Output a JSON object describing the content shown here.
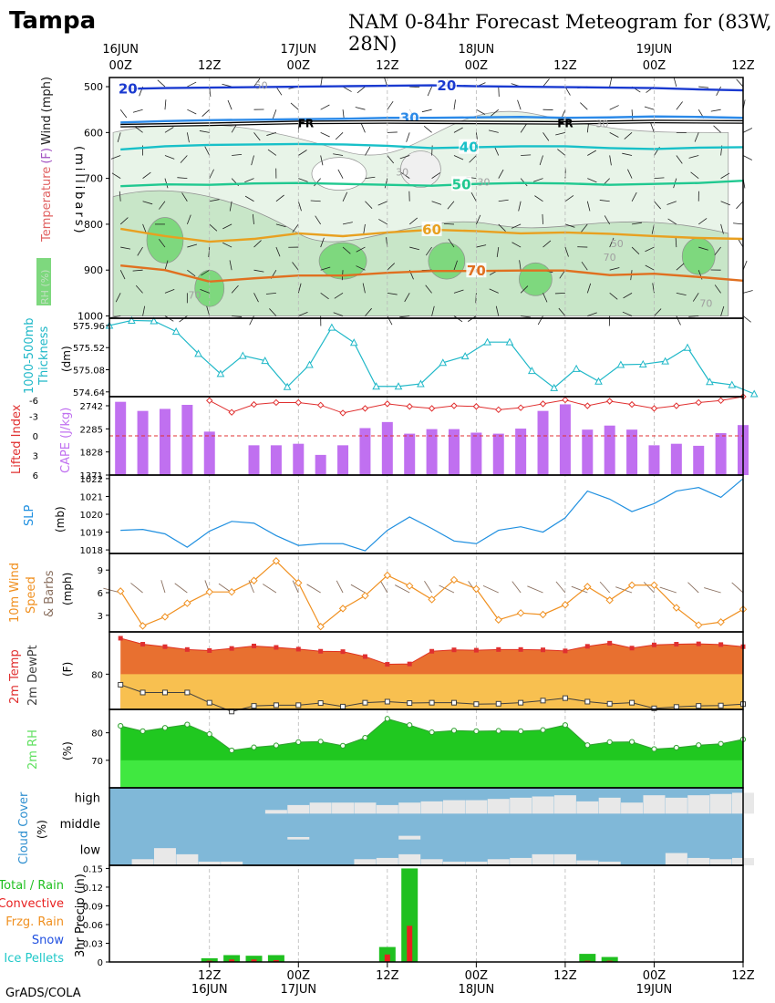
{
  "header": {
    "station": "Tampa",
    "title": "NAM 0-84hr Forecast Meteogram for (83W, 28N)",
    "credit": "GrADS/COLA"
  },
  "time_axis": {
    "top_labels": [
      {
        "t": 0,
        "lines": [
          "16JUN",
          "00Z"
        ]
      },
      {
        "t": 12,
        "lines": [
          "12Z"
        ]
      },
      {
        "t": 24,
        "lines": [
          "17JUN",
          "00Z"
        ]
      },
      {
        "t": 36,
        "lines": [
          "12Z"
        ]
      },
      {
        "t": 48,
        "lines": [
          "18JUN",
          "00Z"
        ]
      },
      {
        "t": 60,
        "lines": [
          "12Z"
        ]
      },
      {
        "t": 72,
        "lines": [
          "19JUN",
          "00Z"
        ]
      },
      {
        "t": 84,
        "lines": [
          "12Z"
        ]
      }
    ],
    "bottom_labels": [
      {
        "t": 12,
        "lines": [
          "12Z",
          "16JUN"
        ]
      },
      {
        "t": 24,
        "lines": [
          "00Z",
          "17JUN"
        ]
      },
      {
        "t": 36,
        "lines": [
          "12Z",
          ""
        ]
      },
      {
        "t": 48,
        "lines": [
          "00Z",
          "18JUN"
        ]
      },
      {
        "t": 60,
        "lines": [
          "12Z",
          ""
        ]
      },
      {
        "t": 72,
        "lines": [
          "00Z",
          "19JUN"
        ]
      },
      {
        "t": 84,
        "lines": [
          "12Z",
          ""
        ]
      }
    ],
    "range_hours": [
      -1.5,
      84
    ]
  },
  "colors": {
    "temp_label": "#e05050",
    "rh_fill_light": "#e8f4e8",
    "rh_fill_mid": "#c8e6c8",
    "rh_fill_dark": "#7ed87e",
    "thickness": "#20b8c8",
    "lifted": "#e03030",
    "cape": "#c070f0",
    "slp": "#2090e0",
    "wind10": "#f09020",
    "temp": "#e87030",
    "dewpt_fill": "#f8c050",
    "rh2m": "#20c820",
    "rh2m_light": "#40e840",
    "cloud_bg": "#80b8d8",
    "cloud": "#e8e8e8",
    "precip_total": "#20c020",
    "precip_conv": "#e82020"
  },
  "chart_data": [
    {
      "type": "heatmap",
      "panel": "upper_air",
      "ylabel_parts": [
        "Temperature",
        "(F)",
        "Wind",
        "(mph)"
      ],
      "ylabel_inner": "(millibars)",
      "rh_label": "RH (%)",
      "yticks": [
        500,
        600,
        700,
        800,
        900,
        1000
      ],
      "ylim": [
        1005,
        480
      ],
      "isotherms": [
        {
          "label": "20",
          "color": "#1a3ad0",
          "labels_at": [
            1,
            44
          ],
          "x": [
            0,
            6,
            12,
            18,
            24,
            30,
            36,
            42,
            48,
            54,
            60,
            66,
            72,
            78,
            84
          ],
          "p": [
            505,
            503,
            502,
            501,
            500,
            499,
            498,
            497,
            499,
            500,
            501,
            502,
            503,
            506,
            508
          ]
        },
        {
          "label": "30",
          "color": "#2c8ae8",
          "labels_at": [
            39
          ],
          "x": [
            0,
            6,
            12,
            18,
            24,
            30,
            36,
            42,
            48,
            54,
            60,
            66,
            72,
            78,
            84
          ],
          "p": [
            578,
            575,
            573,
            572,
            571,
            570,
            568,
            568,
            567,
            566,
            568,
            567,
            565,
            566,
            568
          ]
        },
        {
          "label": "40",
          "color": "#18c0c8",
          "labels_at": [
            47
          ],
          "x": [
            0,
            6,
            12,
            18,
            24,
            30,
            36,
            42,
            48,
            54,
            60,
            66,
            72,
            78,
            84
          ],
          "p": [
            637,
            630,
            627,
            626,
            625,
            626,
            629,
            634,
            632,
            630,
            630,
            634,
            636,
            633,
            632
          ]
        },
        {
          "label": "50",
          "color": "#20c890",
          "labels_at": [
            46
          ],
          "x": [
            0,
            6,
            12,
            18,
            24,
            30,
            36,
            42,
            48,
            54,
            60,
            66,
            72,
            78,
            84
          ],
          "p": [
            717,
            713,
            714,
            711,
            710,
            712,
            714,
            716,
            712,
            710,
            711,
            714,
            712,
            710,
            705
          ]
        },
        {
          "label": "60",
          "color": "#e8a020",
          "labels_at": [
            42
          ],
          "x": [
            0,
            6,
            12,
            18,
            24,
            30,
            36,
            42,
            48,
            54,
            60,
            66,
            72,
            78,
            84
          ],
          "p": [
            810,
            826,
            838,
            832,
            820,
            826,
            818,
            812,
            815,
            820,
            818,
            821,
            826,
            830,
            832
          ]
        },
        {
          "label": "70",
          "color": "#e07020",
          "labels_at": [
            48
          ],
          "x": [
            0,
            6,
            12,
            18,
            24,
            30,
            36,
            42,
            48,
            54,
            60,
            66,
            72,
            78,
            84
          ],
          "p": [
            890,
            900,
            925,
            918,
            912,
            912,
            906,
            902,
            902,
            901,
            901,
            911,
            908,
            915,
            923
          ]
        }
      ],
      "freezing_level": {
        "label": "FR",
        "labels_at": [
          25,
          60
        ],
        "x": [
          0,
          12,
          24,
          36,
          48,
          60,
          72,
          84
        ],
        "p": [
          585,
          582,
          578,
          577,
          578,
          579,
          576,
          577
        ]
      },
      "rh_labels": [
        {
          "text": "50",
          "x": 19,
          "p": 505
        },
        {
          "text": "30",
          "x": 38,
          "p": 694
        },
        {
          "text": "30",
          "x": 49,
          "p": 716
        },
        {
          "text": "50",
          "x": 67,
          "p": 850
        },
        {
          "text": "70",
          "x": 66,
          "p": 880
        },
        {
          "text": "70",
          "x": 79,
          "p": 980
        },
        {
          "text": "30",
          "x": 65,
          "p": 588
        },
        {
          "text": "70",
          "x": 10,
          "p": 962
        }
      ]
    },
    {
      "type": "line",
      "panel": "thickness",
      "ylabel": "1000-500mb Thickness (dm)",
      "yticks": [
        575.96,
        575.52,
        575.08,
        574.64
      ],
      "ylim": [
        574.6,
        576.05
      ],
      "x": [
        -1.5,
        1.5,
        4.5,
        7.5,
        10.5,
        13.5,
        16.5,
        19.5,
        22.5,
        25.5,
        28.5,
        31.5,
        34.5,
        37.5,
        40.5,
        43.5,
        46.5,
        49.5,
        52.5,
        55.5,
        58.5,
        61.5,
        64.5,
        67.5,
        70.5,
        73.5,
        76.5,
        79.5,
        82.5,
        85.5
      ],
      "values": [
        575.96,
        576.06,
        576.05,
        575.84,
        575.4,
        575.0,
        575.36,
        575.26,
        574.74,
        575.18,
        575.92,
        575.62,
        574.75,
        574.75,
        574.8,
        575.22,
        575.35,
        575.63,
        575.63,
        575.06,
        574.72,
        575.1,
        574.85,
        575.18,
        575.19,
        575.25,
        575.52,
        574.84,
        574.78,
        574.6
      ]
    },
    {
      "type": "bar",
      "panel": "cape_li",
      "ylabel_left": "Lifted Index",
      "ylabel_right": "CAPE (J/kg)",
      "li_ticks": [
        "-6",
        "-3",
        "0",
        "3",
        "6"
      ],
      "cape_ticks": [
        2742,
        2285,
        1828,
        1371
      ],
      "cape_ylim": [
        1371,
        2742
      ],
      "li_ylim": [
        6,
        -6
      ],
      "bar_x": [
        0,
        3,
        6,
        9,
        12,
        15,
        18,
        21,
        24,
        27,
        30,
        33,
        36,
        39,
        42,
        45,
        48,
        51,
        54,
        57,
        60,
        63,
        66,
        69,
        72,
        75,
        78,
        81,
        84
      ],
      "cape": [
        2820,
        2640,
        2680,
        2760,
        2230,
        1380,
        1960,
        1960,
        1990,
        1770,
        1960,
        2300,
        2420,
        2190,
        2280,
        2280,
        2210,
        2190,
        2290,
        2640,
        2770,
        2270,
        2350,
        2270,
        1960,
        1990,
        1950,
        2200,
        2360
      ],
      "li_x": [
        12,
        15,
        18,
        21,
        24,
        27,
        30,
        33,
        36,
        39,
        42,
        45,
        48,
        51,
        54,
        57,
        60,
        63,
        66,
        69,
        72,
        75,
        78,
        81,
        84
      ],
      "li": [
        -5.4,
        -3.6,
        -4.8,
        -5.1,
        -5.1,
        -4.7,
        -3.5,
        -4.2,
        -4.9,
        -4.5,
        -4.2,
        -4.6,
        -4.5,
        -4.0,
        -4.3,
        -4.9,
        -5.5,
        -4.6,
        -5.3,
        -4.8,
        -4.2,
        -4.6,
        -5.1,
        -5.4,
        -6.0
      ],
      "li_zero_line": 0
    },
    {
      "type": "line",
      "panel": "slp",
      "ylabel": "SLP (mb)",
      "yticks": [
        1018,
        1019,
        1020,
        1021,
        1022
      ],
      "ylim": [
        1017.8,
        1022.2
      ],
      "x": [
        0,
        3,
        6,
        9,
        12,
        15,
        18,
        21,
        24,
        27,
        30,
        33,
        36,
        39,
        42,
        45,
        48,
        51,
        54,
        57,
        60,
        63,
        66,
        69,
        72,
        75,
        78,
        81,
        84
      ],
      "values": [
        1019.1,
        1019.15,
        1018.9,
        1018.15,
        1019.05,
        1019.6,
        1019.5,
        1018.8,
        1018.25,
        1018.35,
        1018.35,
        1017.95,
        1019.1,
        1019.85,
        1019.2,
        1018.5,
        1018.35,
        1019.1,
        1019.3,
        1019.0,
        1019.8,
        1021.3,
        1020.85,
        1020.15,
        1020.6,
        1021.3,
        1021.5,
        1020.95,
        1022.0
      ]
    },
    {
      "type": "line",
      "panel": "wind10m",
      "ylabel": "10m Wind Speed & Barbs (mph)",
      "yticks": [
        3,
        6,
        9
      ],
      "ylim": [
        0.8,
        11.2
      ],
      "x": [
        0,
        3,
        6,
        9,
        12,
        15,
        18,
        21,
        24,
        27,
        30,
        33,
        36,
        39,
        42,
        45,
        48,
        51,
        54,
        57,
        60,
        63,
        66,
        69,
        72,
        75,
        78,
        81,
        84
      ],
      "values": [
        6.2,
        1.6,
        2.8,
        4.6,
        6.1,
        6.1,
        7.6,
        10.2,
        7.3,
        1.5,
        3.9,
        5.6,
        8.3,
        6.9,
        5.1,
        7.7,
        6.5,
        2.4,
        3.3,
        3.1,
        4.4,
        6.8,
        5.0,
        7.0,
        7.0,
        4.0,
        1.7,
        2.1,
        3.8
      ]
    },
    {
      "type": "area",
      "panel": "temp",
      "ylabel_parts": [
        "2m Temp",
        "2m DewPt",
        "(F)"
      ],
      "yticks": [
        80
      ],
      "ylim": [
        70,
        92
      ],
      "x": [
        0,
        3,
        6,
        9,
        12,
        15,
        18,
        21,
        24,
        27,
        30,
        33,
        36,
        39,
        42,
        45,
        48,
        51,
        54,
        57,
        60,
        63,
        66,
        69,
        72,
        75,
        78,
        81,
        84
      ],
      "series": [
        {
          "name": "2m Temp",
          "values": [
            90.2,
            88.5,
            87.8,
            87.0,
            86.7,
            87.3,
            88.0,
            87.6,
            87.1,
            86.5,
            86.4,
            85.0,
            82.8,
            82.9,
            86.5,
            86.9,
            86.8,
            87.0,
            87.0,
            86.9,
            86.6,
            87.9,
            88.8,
            87.4,
            88.3,
            88.5,
            88.6,
            88.4,
            87.8
          ]
        },
        {
          "name": "2m DewPt",
          "values": [
            77.0,
            74.8,
            74.8,
            74.8,
            71.9,
            69.4,
            71.0,
            71.2,
            71.2,
            71.8,
            70.8,
            71.9,
            72.2,
            71.8,
            71.9,
            71.9,
            71.5,
            71.6,
            71.9,
            72.5,
            73.2,
            72.2,
            71.6,
            71.9,
            70.3,
            70.7,
            71.0,
            71.1,
            71.5
          ]
        }
      ]
    },
    {
      "type": "area",
      "panel": "rh2m",
      "ylabel_parts": [
        "2m RH",
        "(%)"
      ],
      "yticks": [
        70,
        80
      ],
      "ylim": [
        60,
        88.5
      ],
      "x": [
        0,
        3,
        6,
        9,
        12,
        15,
        18,
        21,
        24,
        27,
        30,
        33,
        36,
        39,
        42,
        45,
        48,
        51,
        54,
        57,
        60,
        63,
        66,
        69,
        72,
        75,
        78,
        81,
        84
      ],
      "values": [
        82.5,
        80.6,
        81.8,
        83.0,
        79.5,
        73.6,
        74.7,
        75.4,
        76.6,
        76.8,
        75.3,
        78.2,
        85.1,
        82.8,
        80.2,
        80.8,
        80.6,
        80.7,
        80.6,
        81.0,
        82.8,
        75.5,
        76.6,
        76.7,
        74.1,
        74.6,
        75.5,
        76.0,
        77.6
      ]
    },
    {
      "type": "bar",
      "panel": "cloud",
      "ylabel_parts": [
        "Cloud Cover",
        "(%)"
      ],
      "level_labels": [
        "high",
        "middle",
        "low"
      ],
      "bar_x": [
        0,
        3,
        6,
        9,
        12,
        15,
        18,
        21,
        24,
        27,
        30,
        33,
        36,
        39,
        42,
        45,
        48,
        51,
        54,
        57,
        60,
        63,
        66,
        69,
        72,
        75,
        78,
        81,
        84
      ],
      "series": [
        {
          "name": "high",
          "values": [
            0,
            0,
            0,
            0,
            0,
            0,
            0,
            0.15,
            0.35,
            0.45,
            0.45,
            0.45,
            0.35,
            0.45,
            0.5,
            0.55,
            0.55,
            0.6,
            0.65,
            0.7,
            0.75,
            0.5,
            0.65,
            0.45,
            0.75,
            0.65,
            0.75,
            0.8,
            0.85
          ]
        },
        {
          "name": "middle",
          "values": [
            0,
            0,
            0,
            0,
            0,
            0,
            0,
            0,
            0.1,
            0,
            0,
            0,
            0,
            0.15,
            0,
            0,
            0,
            0,
            0,
            0,
            0,
            0,
            0,
            0,
            0,
            0,
            0,
            0,
            0
          ]
        },
        {
          "name": "low",
          "values": [
            0,
            0.25,
            0.7,
            0.45,
            0.15,
            0.15,
            0,
            0,
            0,
            0,
            0,
            0.25,
            0.3,
            0.45,
            0.25,
            0.15,
            0.15,
            0.25,
            0.3,
            0.45,
            0.45,
            0.2,
            0.15,
            0,
            0,
            0.5,
            0.3,
            0.25,
            0.3
          ]
        }
      ]
    },
    {
      "type": "bar",
      "panel": "precip",
      "ylabel": "3hr Precip (in)",
      "legend": [
        {
          "text": "Total / Rain",
          "color": "#20c020"
        },
        {
          "text": "Convective",
          "color": "#e82020"
        },
        {
          "text": "Frzg. Rain",
          "color": "#f09020"
        },
        {
          "text": "Snow",
          "color": "#2050e0"
        },
        {
          "text": "Ice Pellets",
          "color": "#20c8c8"
        }
      ],
      "yticks": [
        "0",
        "0.03",
        "0.06",
        "0.09",
        "0.12",
        "0.15"
      ],
      "ylim": [
        0,
        0.155
      ],
      "bar_x": [
        12,
        15,
        18,
        21,
        36,
        39,
        63,
        66
      ],
      "series": [
        {
          "name": "Total / Rain",
          "values": [
            0.006,
            0.011,
            0.01,
            0.011,
            0.024,
            0.15,
            0.013,
            0.008
          ]
        },
        {
          "name": "Convective",
          "values": [
            0.002,
            0.004,
            0.004,
            0.003,
            0.012,
            0.058,
            0.002,
            0.002
          ]
        }
      ]
    }
  ]
}
